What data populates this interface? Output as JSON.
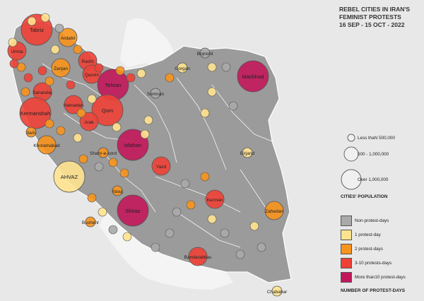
{
  "title": [
    "REBEL CITIES IN IRAN'S",
    "FEMINIST PROTESTS",
    "16 SEP - 15 OCT - 2022"
  ],
  "legend": {
    "population_items": [
      "Less thaN 500,000",
      "500 - 1,000,000",
      "Over 1,000,000"
    ],
    "population_title": "CITIES' POPULATION",
    "protest_items": [
      {
        "label": "Non-protest-days",
        "color": "#aaaaaa"
      },
      {
        "label": "1 protest-day",
        "color": "#ffe38f"
      },
      {
        "label": "2 protest-days",
        "color": "#f7941d"
      },
      {
        "label": "3-10 protests-days",
        "color": "#ef4136"
      },
      {
        "label": "More than10 protest-days",
        "color": "#c2185b"
      }
    ],
    "protest_title": "NUMBER OF PROTEST-DAYS"
  },
  "colors": {
    "iran": "#9b9b9b",
    "neighbors": "#dcdcdc",
    "water": "#f2f2f2",
    "border": "#ffffff"
  },
  "cities": [
    {
      "name": "Tabriz",
      "cat": 3,
      "size": 3
    },
    {
      "name": "Ardabil",
      "cat": 2,
      "size": 2
    },
    {
      "name": "Urmia",
      "cat": 3,
      "size": 2
    },
    {
      "name": "Zanjan",
      "cat": 2,
      "size": 2
    },
    {
      "name": "Rasht",
      "cat": 3,
      "size": 2
    },
    {
      "name": "Qazvin",
      "cat": 3,
      "size": 2
    },
    {
      "name": "Tehran",
      "cat": 4,
      "size": 3
    },
    {
      "name": "Sanandaj",
      "cat": 3,
      "size": 2
    },
    {
      "name": "Hamadan",
      "cat": 3,
      "size": 2
    },
    {
      "name": "Kermanshah",
      "cat": 3,
      "size": 3
    },
    {
      "name": "Qom",
      "cat": 3,
      "size": 3
    },
    {
      "name": "Arak",
      "cat": 3,
      "size": 2
    },
    {
      "name": "Ilam",
      "cat": 2,
      "size": 1
    },
    {
      "name": "Khoramabad",
      "cat": 2,
      "size": 2
    },
    {
      "name": "Isfahan",
      "cat": 4,
      "size": 3
    },
    {
      "name": "Shahr-e-kord",
      "cat": 2,
      "size": 1
    },
    {
      "name": "AHVAZ",
      "cat": 1,
      "size": 3
    },
    {
      "name": "Yasuj",
      "cat": 2,
      "size": 1
    },
    {
      "name": "Shiraz",
      "cat": 4,
      "size": 3
    },
    {
      "name": "Bushehr",
      "cat": 2,
      "size": 1
    },
    {
      "name": "Yazd",
      "cat": 3,
      "size": 2
    },
    {
      "name": "Kerman",
      "cat": 3,
      "size": 2
    },
    {
      "name": "Bandarabbas",
      "cat": 3,
      "size": 2
    },
    {
      "name": "Zahedan",
      "cat": 2,
      "size": 2
    },
    {
      "name": "Chabahar",
      "cat": 1,
      "size": 1
    },
    {
      "name": "Birjand",
      "cat": 1,
      "size": 1
    },
    {
      "name": "Mashhad",
      "cat": 4,
      "size": 3
    },
    {
      "name": "Bojnord",
      "cat": 0,
      "size": 1
    },
    {
      "name": "Gorgan",
      "cat": 1,
      "size": 1
    },
    {
      "name": "Semnan",
      "cat": 0,
      "size": 1
    }
  ]
}
